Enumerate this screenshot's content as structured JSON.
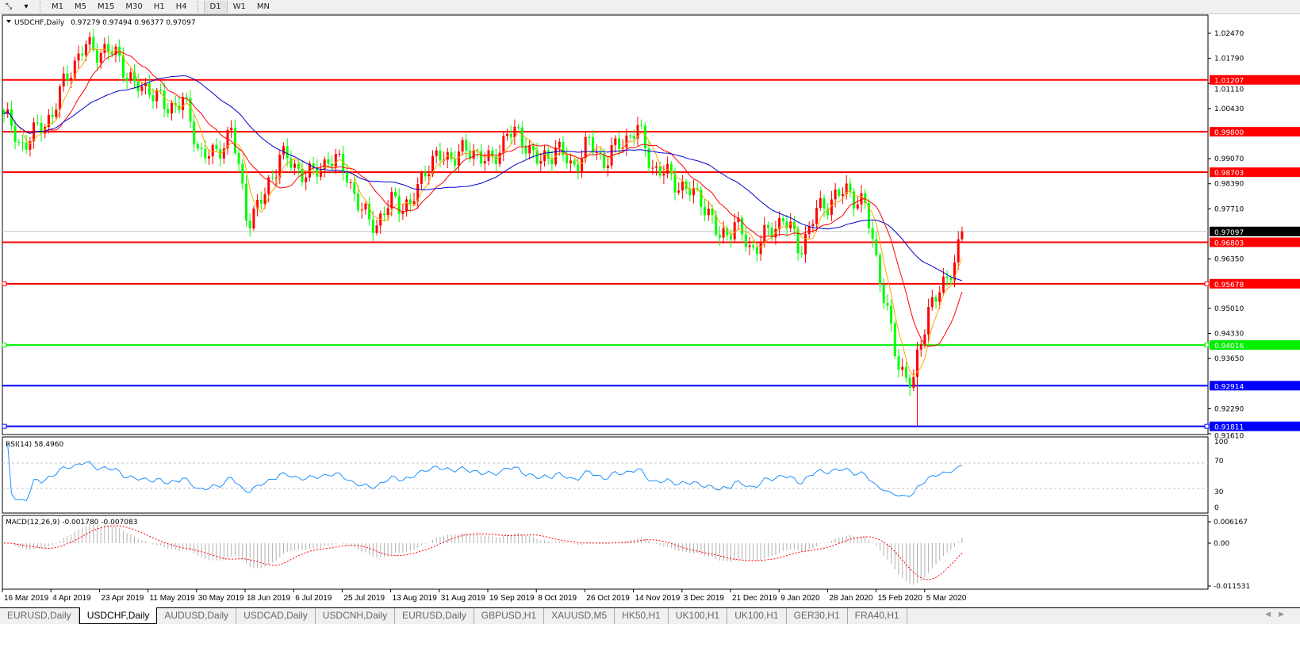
{
  "toolbar": {
    "tool_icon": "line-tool-icon",
    "timeframes": [
      "M1",
      "M5",
      "M15",
      "M30",
      "H1",
      "H4",
      "D1",
      "W1",
      "MN"
    ],
    "active_timeframe": "D1"
  },
  "chart": {
    "header": "USDCHF,Daily",
    "ohlc": "0.97279 0.97494 0.96377 0.97097",
    "current_price": "0.97097",
    "price_ticks": [
      "1.02470",
      "1.01790",
      "1.01110",
      "1.00430",
      "0.99070",
      "0.98390",
      "0.97710",
      "0.96350",
      "0.95010",
      "0.94330",
      "0.93650",
      "0.92290",
      "0.91610"
    ],
    "levels": [
      {
        "price": "1.01207",
        "color": "#ff0000"
      },
      {
        "price": "0.99800",
        "color": "#ff0000"
      },
      {
        "price": "0.98703",
        "color": "#ff0000"
      },
      {
        "price": "0.96803",
        "color": "#ff0000"
      },
      {
        "price": "0.95678",
        "color": "#ff0000"
      },
      {
        "price": "0.94016",
        "color": "#00ee00"
      },
      {
        "price": "0.92914",
        "color": "#0000ff"
      },
      {
        "price": "0.91811",
        "color": "#0000ff"
      }
    ],
    "date_labels": [
      "16 Mar 2019",
      "4 Apr 2019",
      "23 Apr 2019",
      "11 May 2019",
      "30 May 2019",
      "18 Jun 2019",
      "6 Jul 2019",
      "25 Jul 2019",
      "13 Aug 2019",
      "31 Aug 2019",
      "19 Sep 2019",
      "8 Oct 2019",
      "26 Oct 2019",
      "14 Nov 2019",
      "3 Dec 2019",
      "21 Dec 2019",
      "9 Jan 2020",
      "28 Jan 2020",
      "15 Feb 2020",
      "5 Mar 2020"
    ],
    "up_color": "#ff0000",
    "down_color": "#00ff00"
  },
  "rsi": {
    "label": "RSI(14) 58.4960",
    "ticks": [
      "100",
      "70",
      "30",
      "0"
    ],
    "color": "#1e90ff"
  },
  "macd": {
    "label": "MACD(12,26,9) -0.001780 -0.007083",
    "ticks": [
      "0.006167",
      "0.00",
      "-0.011531"
    ],
    "signal_color": "#ff0000"
  },
  "chart_data": {
    "type": "candlestick",
    "symbol": "USDCHF",
    "timeframe": "Daily",
    "approx_close_path": [
      1.0028,
      0.9941,
      0.998,
      1.003,
      1.0146,
      1.021,
      1.02,
      1.019,
      1.01,
      1.01,
      1.004,
      1.007,
      0.993,
      0.991,
      0.999,
      0.974,
      0.98,
      0.992,
      0.988,
      0.986,
      0.991,
      0.988,
      0.976,
      0.973,
      0.98,
      0.977,
      0.989,
      0.991,
      0.992,
      0.993,
      0.989,
      0.998,
      0.996,
      0.989,
      0.994,
      0.988,
      0.995,
      0.99,
      0.995,
      0.999,
      0.988,
      0.986,
      0.982,
      0.98,
      0.969,
      0.973,
      0.966,
      0.97,
      0.975,
      0.966,
      0.976,
      0.98,
      0.982,
      0.978,
      0.958,
      0.935,
      0.93,
      0.952,
      0.956,
      0.97097
    ],
    "ylim": [
      0.9161,
      1.0247
    ],
    "moving_averages": [
      "orange",
      "red",
      "blue"
    ]
  },
  "tabs": [
    "EURUSD,Daily",
    "USDCHF,Daily",
    "AUDUSD,Daily",
    "USDCAD,Daily",
    "USDCNH,Daily",
    "EURUSD,Daily",
    "GBPUSD,H1",
    "XAUUSD,M5",
    "HK50,H1",
    "UK100,H1",
    "UK100,H1",
    "GER30,H1",
    "FRA40,H1"
  ],
  "active_tab": 1
}
